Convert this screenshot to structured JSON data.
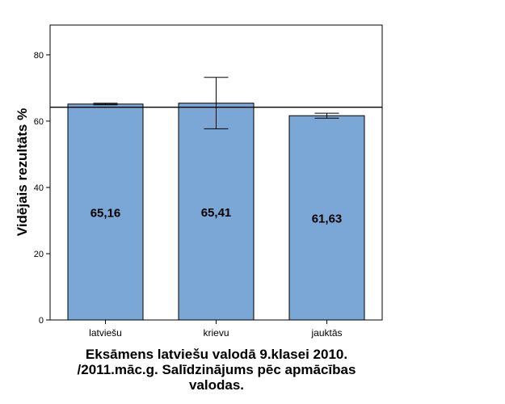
{
  "chart_data": {
    "type": "bar",
    "categories": [
      "latviešu",
      "krievu",
      "jauktās"
    ],
    "values": [
      65.16,
      65.41,
      61.63
    ],
    "value_labels": [
      "65,16",
      "65,41",
      "61,63"
    ],
    "error_bars": [
      {
        "low": 64.9,
        "high": 65.4
      },
      {
        "low": 57.7,
        "high": 73.2
      },
      {
        "low": 60.9,
        "high": 62.4
      }
    ],
    "reference_line": 64.2,
    "yticks": [
      0,
      20,
      40,
      60,
      80
    ],
    "ylim": [
      0,
      89
    ],
    "title": "",
    "xlabel_lines": [
      "Eksāmens latviešu valodā 9.klasei 2010.",
      "/2011.māc.g. Salīdzinājums pēc apmācības",
      "valodas."
    ],
    "ylabel": "Vidējais rezultāts %",
    "grid": false,
    "bar_color": "#7aa7d6",
    "bar_edge_color": "#000000"
  }
}
